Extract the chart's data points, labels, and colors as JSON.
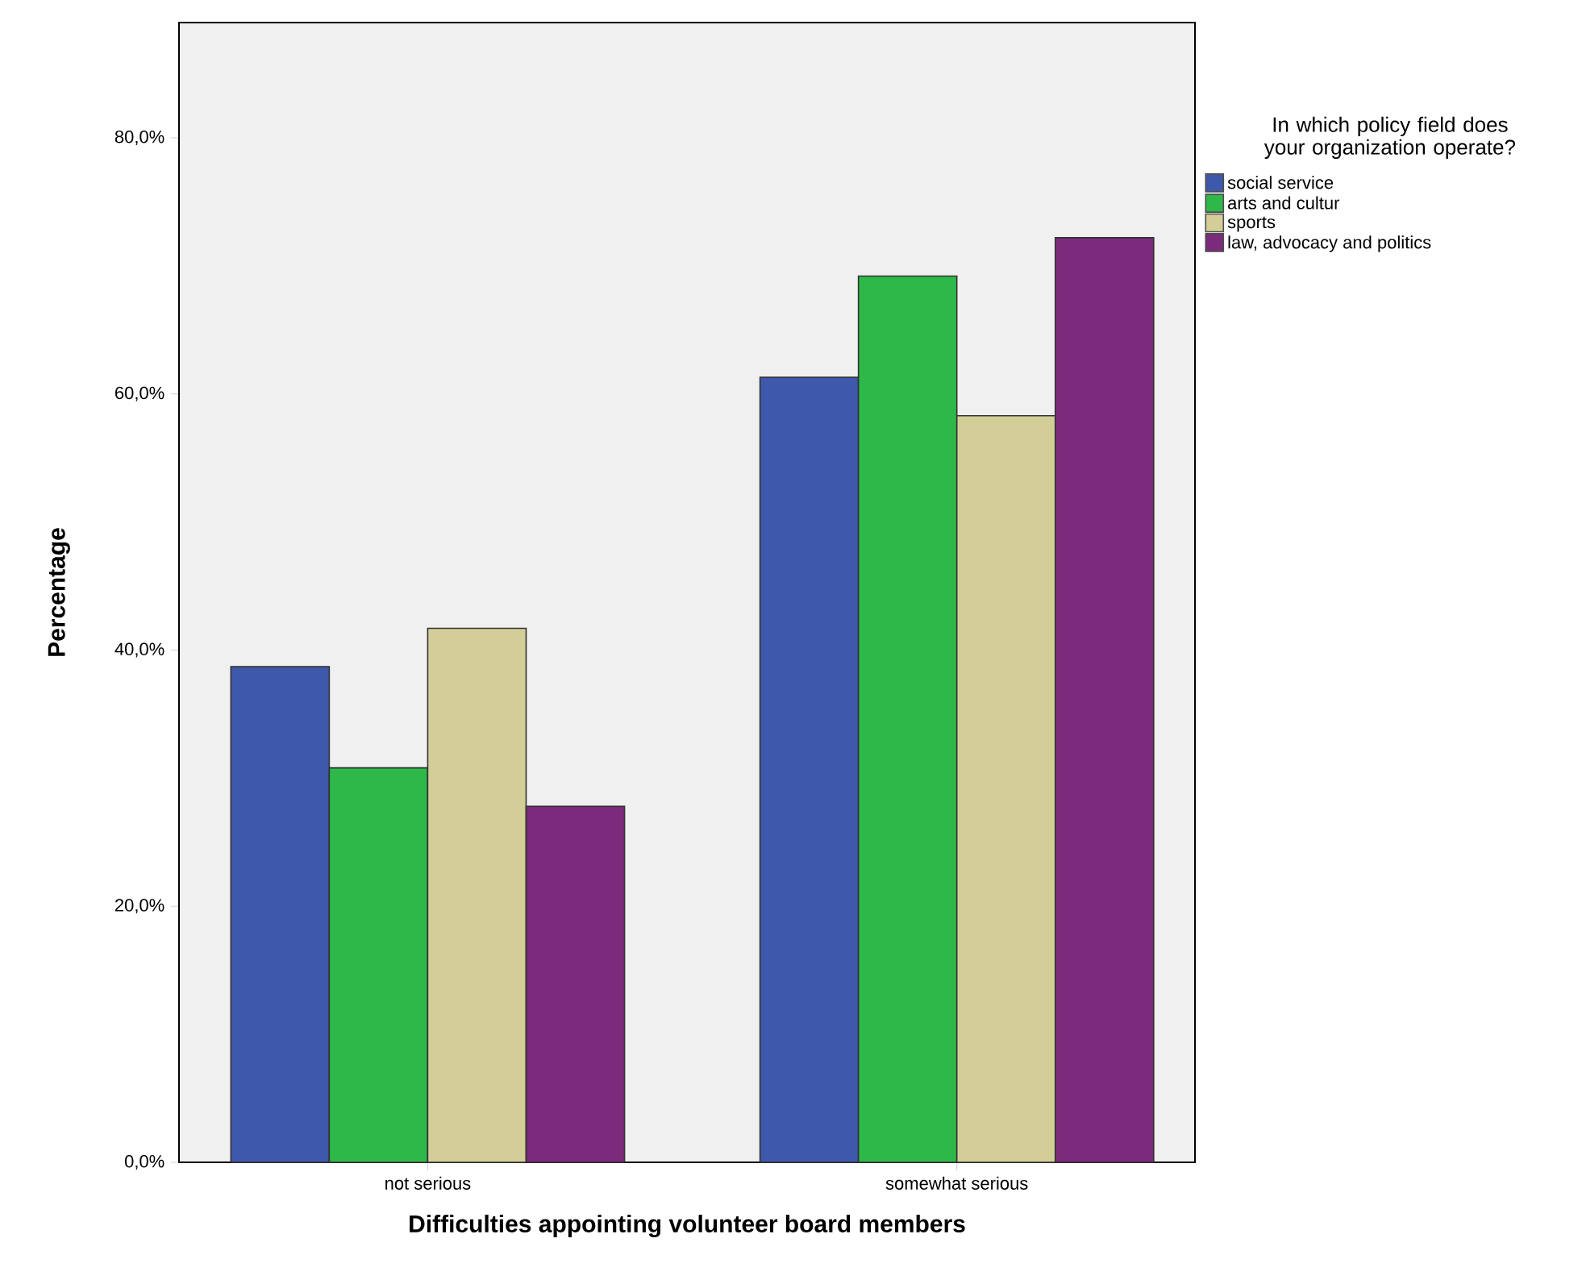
{
  "chart_data": {
    "type": "bar",
    "xlabel": "Difficulties appointing volunteer board members",
    "ylabel": "Percentage",
    "legend_title": "In which policy field does your organization operate?",
    "legend": "right",
    "categories": [
      "not serious",
      "somewhat serious"
    ],
    "series": [
      {
        "name": "social service",
        "color": "#3e58ac",
        "values": [
          38.7,
          61.3
        ]
      },
      {
        "name": "arts and cultur",
        "color": "#2fb84a",
        "values": [
          30.8,
          69.2
        ]
      },
      {
        "name": "sports",
        "color": "#d3ce97",
        "values": [
          41.7,
          58.3
        ]
      },
      {
        "name": "law, advocacy and politics",
        "color": "#7c2a7c",
        "values": [
          27.8,
          72.2
        ]
      }
    ],
    "ylim": [
      0,
      89
    ],
    "yticks": [
      {
        "value": 0,
        "label": "0,0%"
      },
      {
        "value": 20,
        "label": "20,0%"
      },
      {
        "value": 40,
        "label": "40,0%"
      },
      {
        "value": 60,
        "label": "60,0%"
      },
      {
        "value": 80,
        "label": "80,0%"
      }
    ]
  }
}
